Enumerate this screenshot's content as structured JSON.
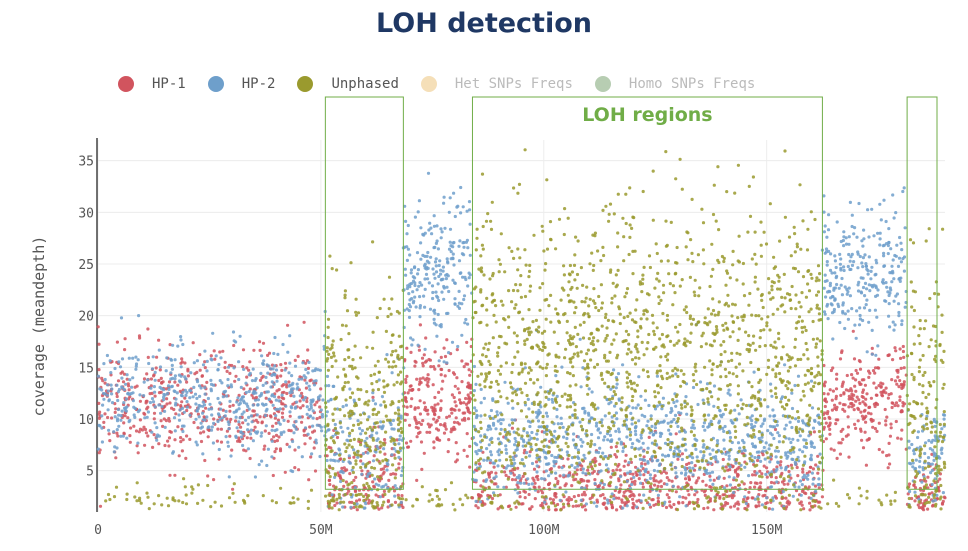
{
  "chart_data": {
    "type": "scatter",
    "title": "LOH detection",
    "ylabel": "coverage (meandepth)",
    "xlabel": "",
    "xlim": [
      0,
      190000000
    ],
    "ylim": [
      1,
      37
    ],
    "x_ticks": [
      {
        "value": 0,
        "label": "0"
      },
      {
        "value": 50000000,
        "label": "50M"
      },
      {
        "value": 100000000,
        "label": "100M"
      },
      {
        "value": 150000000,
        "label": "150M"
      }
    ],
    "y_ticks": [
      {
        "value": 5,
        "label": "5"
      },
      {
        "value": 10,
        "label": "10"
      },
      {
        "value": 15,
        "label": "15"
      },
      {
        "value": 20,
        "label": "20"
      },
      {
        "value": 25,
        "label": "25"
      },
      {
        "value": 30,
        "label": "30"
      },
      {
        "value": 35,
        "label": "35"
      }
    ],
    "legend": [
      {
        "label": "HP-1",
        "color": "#d1545e",
        "active": true
      },
      {
        "label": "HP-2",
        "color": "#6e9fcb",
        "active": true
      },
      {
        "label": "Unphased",
        "color": "#9a9a2e",
        "active": true
      },
      {
        "label": "Het SNPs Freqs",
        "color": "#f5dfb8",
        "active": false
      },
      {
        "label": "Homo SNPs Freqs",
        "color": "#b7cdb2",
        "active": false
      }
    ],
    "legend_position": "top-left",
    "grid": true,
    "annotation": {
      "text": "LOH regions",
      "color": "#70ad47"
    },
    "loh_regions": [
      {
        "start": 51000000,
        "end": 68500000,
        "y_low": 3.2,
        "y_high": 37
      },
      {
        "start": 84000000,
        "end": 162500000,
        "y_low": 3.2,
        "y_high": 37
      },
      {
        "start": 181500000,
        "end": 190000000,
        "y_low": 3.2,
        "y_high": 37
      }
    ],
    "series_segments": [
      {
        "series": "HP-1",
        "start": 0,
        "end": 50000000,
        "mean": 11.3,
        "sd": 2.8,
        "count": 520
      },
      {
        "series": "HP-2",
        "start": 0,
        "end": 50000000,
        "mean": 11.8,
        "sd": 2.6,
        "count": 520
      },
      {
        "series": "Unphased",
        "start": 0,
        "end": 50000000,
        "mean": 2.0,
        "sd": 1.0,
        "count": 60
      },
      {
        "series": "HP-2",
        "start": 50000000,
        "end": 51000000,
        "mean": 12,
        "sd": 6,
        "count": 12
      },
      {
        "series": "HP-1",
        "start": 51000000,
        "end": 68500000,
        "mean": 4.0,
        "sd": 2.3,
        "count": 150
      },
      {
        "series": "HP-2",
        "start": 51000000,
        "end": 68500000,
        "mean": 7.5,
        "sd": 3.5,
        "count": 170
      },
      {
        "series": "Unphased",
        "start": 51000000,
        "end": 68500000,
        "mean": 9.5,
        "sd": 6.5,
        "count": 330
      },
      {
        "series": "HP-1",
        "start": 68500000,
        "end": 84000000,
        "mean": 11.5,
        "sd": 2.8,
        "count": 230
      },
      {
        "series": "HP-2",
        "start": 68500000,
        "end": 84000000,
        "mean": 24,
        "sd": 3.5,
        "count": 230
      },
      {
        "series": "Unphased",
        "start": 68500000,
        "end": 84000000,
        "mean": 2.0,
        "sd": 1.0,
        "count": 25
      },
      {
        "series": "HP-1",
        "start": 84000000,
        "end": 162500000,
        "mean": 3.3,
        "sd": 2.0,
        "count": 650
      },
      {
        "series": "HP-2",
        "start": 84000000,
        "end": 162500000,
        "mean": 7.8,
        "sd": 3.0,
        "count": 900
      },
      {
        "series": "Unphased",
        "start": 84000000,
        "end": 162500000,
        "mean": 15.0,
        "sd": 7.5,
        "count": 1500
      },
      {
        "series": "HP-1",
        "start": 162500000,
        "end": 181500000,
        "mean": 11.5,
        "sd": 2.5,
        "count": 260
      },
      {
        "series": "HP-2",
        "start": 162500000,
        "end": 181500000,
        "mean": 24,
        "sd": 3.2,
        "count": 260
      },
      {
        "series": "Unphased",
        "start": 162500000,
        "end": 181500000,
        "mean": 2.0,
        "sd": 1.0,
        "count": 20
      },
      {
        "series": "HP-1",
        "start": 181500000,
        "end": 190000000,
        "mean": 3.0,
        "sd": 1.5,
        "count": 70
      },
      {
        "series": "HP-2",
        "start": 181500000,
        "end": 190000000,
        "mean": 6.5,
        "sd": 2.5,
        "count": 90
      },
      {
        "series": "Unphased",
        "start": 181500000,
        "end": 190000000,
        "mean": 10.0,
        "sd": 7.0,
        "count": 160
      }
    ]
  }
}
